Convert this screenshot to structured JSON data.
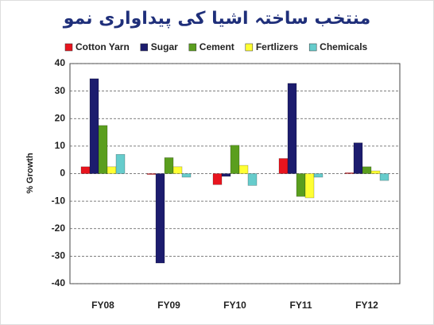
{
  "chart_data": {
    "type": "bar",
    "title": "منتخب ساختہ اشیا کی پیداواری نمو",
    "y_label": "% Growth",
    "categories": [
      "FY08",
      "FY09",
      "FY10",
      "FY11",
      "FY12"
    ],
    "series": [
      {
        "name": "Cotton Yarn",
        "color": "#e8141e",
        "values": [
          2.5,
          -0.3,
          -4,
          5.5,
          0.3
        ]
      },
      {
        "name": "Sugar",
        "color": "#1c1c6e",
        "values": [
          34.5,
          -32.5,
          -1,
          32.8,
          11.2
        ]
      },
      {
        "name": "Cement",
        "color": "#5a9e1e",
        "values": [
          17.5,
          5.8,
          10.3,
          -8.3,
          2.5
        ]
      },
      {
        "name": "Fertlizers",
        "color": "#ffff33",
        "values": [
          2.5,
          2.5,
          3,
          -8.8,
          1
        ]
      },
      {
        "name": "Chemicals",
        "color": "#66cccc",
        "values": [
          7,
          -1.3,
          -4.3,
          -1.3,
          -2.5
        ]
      }
    ],
    "ylim": [
      -40,
      40
    ],
    "yticks": [
      -40,
      -30,
      -20,
      -10,
      0,
      10,
      20,
      30,
      40
    ],
    "grid": true
  }
}
